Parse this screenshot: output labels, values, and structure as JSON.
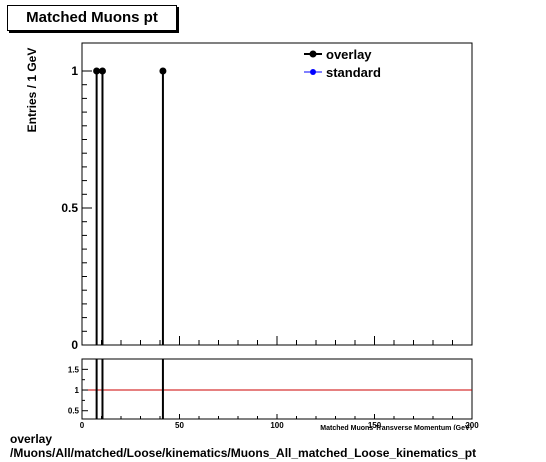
{
  "title": "Matched Muons pt",
  "caption_line1": "overlay",
  "caption_line2": "/Muons/All/matched/Loose/kinematics/Muons_All_matched_Loose_kinematics_pt",
  "chart_data": [
    {
      "type": "bar",
      "title": "Matched Muons pt",
      "ylabel": "Entries / 1 GeV",
      "xlabel": "Matched Muons Transverse Momentum (GeV)",
      "xlim": [
        0,
        200
      ],
      "ylim": [
        0,
        1.05
      ],
      "y_ticks": [
        "0",
        "0.5",
        "1"
      ],
      "grid": false,
      "legend_position": "top-right",
      "series": [
        {
          "name": "overlay",
          "color": "#000000",
          "x": [
            7.5,
            10.5,
            41.5
          ],
          "values": [
            1,
            1,
            1
          ]
        },
        {
          "name": "standard",
          "color": "#0000ff",
          "x": [],
          "values": []
        }
      ]
    },
    {
      "type": "line",
      "xlim": [
        0,
        200
      ],
      "x_ticks": [
        "0",
        "50",
        "100",
        "150",
        "200"
      ],
      "ylim": [
        0.3,
        1.75
      ],
      "y_ticks": [
        "0.5",
        "1",
        "1.5"
      ],
      "reference_line": {
        "y": 1,
        "color": "#cc0000"
      },
      "overlay_spikes_x": [
        7.5,
        10.5,
        41.5
      ]
    }
  ]
}
